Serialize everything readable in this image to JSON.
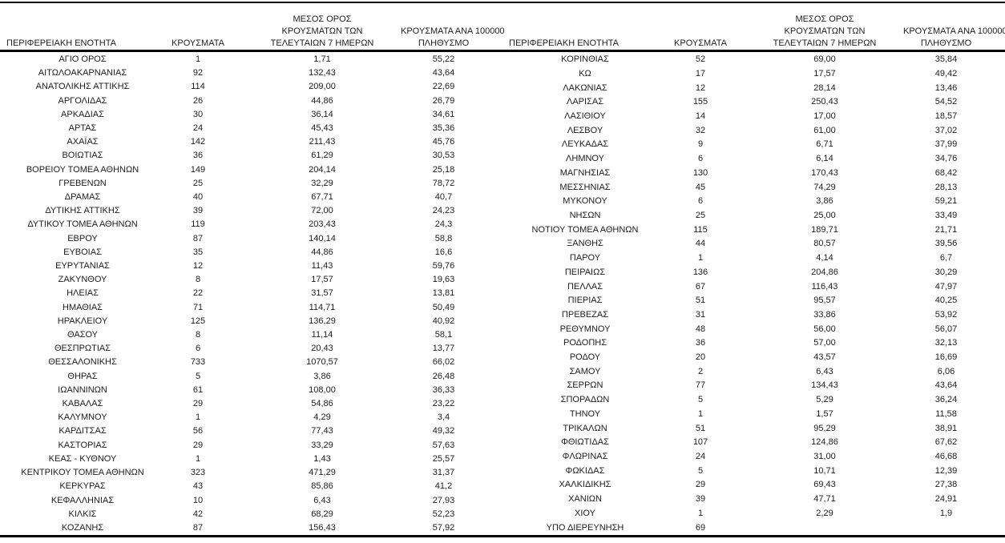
{
  "page": {
    "background": "#ffffff",
    "text_color": "#1c1c1c",
    "rule_color": "#000000"
  },
  "table": {
    "headers": {
      "region": "ΠΕΡΙΦΕΡΕΙΑΚΗ ΕΝΟΤΗΤΑ",
      "cases": "ΚΡΟΥΣΜΑΤΑ",
      "avg7_lines": [
        "ΜΕΣΟΣ ΟΡΟΣ",
        "ΚΡΟΥΣΜΑΤΩΝ ΤΩΝ",
        "ΤΕΛΕΥΤΑΙΩΝ 7 ΗΜΕΡΩΝ"
      ],
      "per100k_lines": [
        "ΚΡΟΥΣΜΑΤΑ ΑΝΑ 100000",
        "ΠΛΗΘΥΣΜΟ"
      ]
    },
    "left_rows": [
      [
        "ΑΓΙΟ ΟΡΟΣ",
        "1",
        "1,71",
        "55,22"
      ],
      [
        "ΑΙΤΩΛΟΑΚΑΡΝΑΝΙΑΣ",
        "92",
        "132,43",
        "43,64"
      ],
      [
        "ΑΝΑΤΟΛΙΚΗΣ ΑΤΤΙΚΗΣ",
        "114",
        "209,00",
        "22,69"
      ],
      [
        "ΑΡΓΟΛΙΔΑΣ",
        "26",
        "44,86",
        "26,79"
      ],
      [
        "ΑΡΚΑΔΙΑΣ",
        "30",
        "36,14",
        "34,61"
      ],
      [
        "ΑΡΤΑΣ",
        "24",
        "45,43",
        "35,36"
      ],
      [
        "ΑΧΑΪΑΣ",
        "142",
        "211,43",
        "45,76"
      ],
      [
        "ΒΟΙΩΤΙΑΣ",
        "36",
        "61,29",
        "30,53"
      ],
      [
        "ΒΟΡΕΙΟΥ ΤΟΜΕΑ ΑΘΗΝΩΝ",
        "149",
        "204,14",
        "25,18"
      ],
      [
        "ΓΡΕΒΕΝΩΝ",
        "25",
        "32,29",
        "78,72"
      ],
      [
        "ΔΡΑΜΑΣ",
        "40",
        "67,71",
        "40,7"
      ],
      [
        "ΔΥΤΙΚΗΣ ΑΤΤΙΚΗΣ",
        "39",
        "72,00",
        "24,23"
      ],
      [
        "ΔΥΤΙΚΟΥ ΤΟΜΕΑ ΑΘΗΝΩΝ",
        "119",
        "203,43",
        "24,3"
      ],
      [
        "ΕΒΡΟΥ",
        "87",
        "140,14",
        "58,8"
      ],
      [
        "ΕΥΒΟΙΑΣ",
        "35",
        "44,86",
        "16,6"
      ],
      [
        "ΕΥΡΥΤΑΝΙΑΣ",
        "12",
        "11,43",
        "59,76"
      ],
      [
        "ΖΑΚΥΝΘΟΥ",
        "8",
        "17,57",
        "19,63"
      ],
      [
        "ΗΛΕΙΑΣ",
        "22",
        "31,57",
        "13,81"
      ],
      [
        "ΗΜΑΘΙΑΣ",
        "71",
        "114,71",
        "50,49"
      ],
      [
        "ΗΡΑΚΛΕΙΟΥ",
        "125",
        "136,29",
        "40,92"
      ],
      [
        "ΘΑΣΟΥ",
        "8",
        "11,14",
        "58,1"
      ],
      [
        "ΘΕΣΠΡΩΤΙΑΣ",
        "6",
        "20,43",
        "13,77"
      ],
      [
        "ΘΕΣΣΑΛΟΝΙΚΗΣ",
        "733",
        "1070,57",
        "66,02"
      ],
      [
        "ΘΗΡΑΣ",
        "5",
        "3,86",
        "26,48"
      ],
      [
        "ΙΩΑΝΝΙΝΩΝ",
        "61",
        "108,00",
        "36,33"
      ],
      [
        "ΚΑΒΑΛΑΣ",
        "29",
        "54,86",
        "23,22"
      ],
      [
        "ΚΑΛΥΜΝΟΥ",
        "1",
        "4,29",
        "3,4"
      ],
      [
        "ΚΑΡΔΙΤΣΑΣ",
        "56",
        "77,43",
        "49,32"
      ],
      [
        "ΚΑΣΤΟΡΙΑΣ",
        "29",
        "33,29",
        "57,63"
      ],
      [
        "ΚΕΑΣ - ΚΥΘΝΟΥ",
        "1",
        "1,43",
        "25,57"
      ],
      [
        "ΚΕΝΤΡΙΚΟΥ ΤΟΜΕΑ ΑΘΗΝΩΝ",
        "323",
        "471,29",
        "31,37"
      ],
      [
        "ΚΕΡΚΥΡΑΣ",
        "43",
        "85,86",
        "41,2"
      ],
      [
        "ΚΕΦΑΛΛΗΝΙΑΣ",
        "10",
        "6,43",
        "27,93"
      ],
      [
        "ΚΙΛΚΙΣ",
        "42",
        "68,29",
        "52,23"
      ],
      [
        "ΚΟΖΑΝΗΣ",
        "87",
        "156,43",
        "57,92"
      ]
    ],
    "right_rows": [
      [
        "ΚΟΡΙΝΘΙΑΣ",
        "52",
        "69,00",
        "35,84"
      ],
      [
        "ΚΩ",
        "17",
        "17,57",
        "49,42"
      ],
      [
        "ΛΑΚΩΝΙΑΣ",
        "12",
        "28,14",
        "13,46"
      ],
      [
        "ΛΑΡΙΣΑΣ",
        "155",
        "250,43",
        "54,52"
      ],
      [
        "ΛΑΣΙΘΙΟΥ",
        "14",
        "17,00",
        "18,57"
      ],
      [
        "ΛΕΣΒΟΥ",
        "32",
        "61,00",
        "37,02"
      ],
      [
        "ΛΕΥΚΑΔΑΣ",
        "9",
        "6,71",
        "37,99"
      ],
      [
        "ΛΗΜΝΟΥ",
        "6",
        "6,14",
        "34,76"
      ],
      [
        "ΜΑΓΝΗΣΙΑΣ",
        "130",
        "170,43",
        "68,42"
      ],
      [
        "ΜΕΣΣΗΝΙΑΣ",
        "45",
        "74,29",
        "28,13"
      ],
      [
        "ΜΥΚΟΝΟΥ",
        "6",
        "3,86",
        "59,21"
      ],
      [
        "ΝΗΣΩΝ",
        "25",
        "25,00",
        "33,49"
      ],
      [
        "ΝΟΤΙΟΥ ΤΟΜΕΑ ΑΘΗΝΩΝ",
        "115",
        "189,71",
        "21,71"
      ],
      [
        "ΞΑΝΘΗΣ",
        "44",
        "80,57",
        "39,56"
      ],
      [
        "ΠΑΡΟΥ",
        "1",
        "4,14",
        "6,7"
      ],
      [
        "ΠΕΙΡΑΙΩΣ",
        "136",
        "204,86",
        "30,29"
      ],
      [
        "ΠΕΛΛΑΣ",
        "67",
        "116,43",
        "47,97"
      ],
      [
        "ΠΙΕΡΙΑΣ",
        "51",
        "95,57",
        "40,25"
      ],
      [
        "ΠΡΕΒΕΖΑΣ",
        "31",
        "33,86",
        "53,92"
      ],
      [
        "ΡΕΘΥΜΝΟΥ",
        "48",
        "56,00",
        "56,07"
      ],
      [
        "ΡΟΔΟΠΗΣ",
        "36",
        "57,00",
        "32,13"
      ],
      [
        "ΡΟΔΟΥ",
        "20",
        "43,57",
        "16,69"
      ],
      [
        "ΣΑΜΟΥ",
        "2",
        "6,43",
        "6,06"
      ],
      [
        "ΣΕΡΡΩΝ",
        "77",
        "134,43",
        "43,64"
      ],
      [
        "ΣΠΟΡΑΔΩΝ",
        "5",
        "5,29",
        "36,24"
      ],
      [
        "ΤΗΝΟΥ",
        "1",
        "1,57",
        "11,58"
      ],
      [
        "ΤΡΙΚΑΛΩΝ",
        "51",
        "95,29",
        "38,91"
      ],
      [
        "ΦΘΙΩΤΙΔΑΣ",
        "107",
        "124,86",
        "67,62"
      ],
      [
        "ΦΛΩΡΙΝΑΣ",
        "24",
        "31,00",
        "46,68"
      ],
      [
        "ΦΩΚΙΔΑΣ",
        "5",
        "10,71",
        "12,39"
      ],
      [
        "ΧΑΛΚΙΔΙΚΗΣ",
        "29",
        "69,43",
        "27,38"
      ],
      [
        "ΧΑΝΙΩΝ",
        "39",
        "47,71",
        "24,91"
      ],
      [
        "ΧΙΟΥ",
        "1",
        "2,29",
        "1,9"
      ],
      [
        "ΥΠΟ ΔΙΕΡΕΥΝΗΣΗ",
        "69",
        "",
        ""
      ]
    ]
  }
}
